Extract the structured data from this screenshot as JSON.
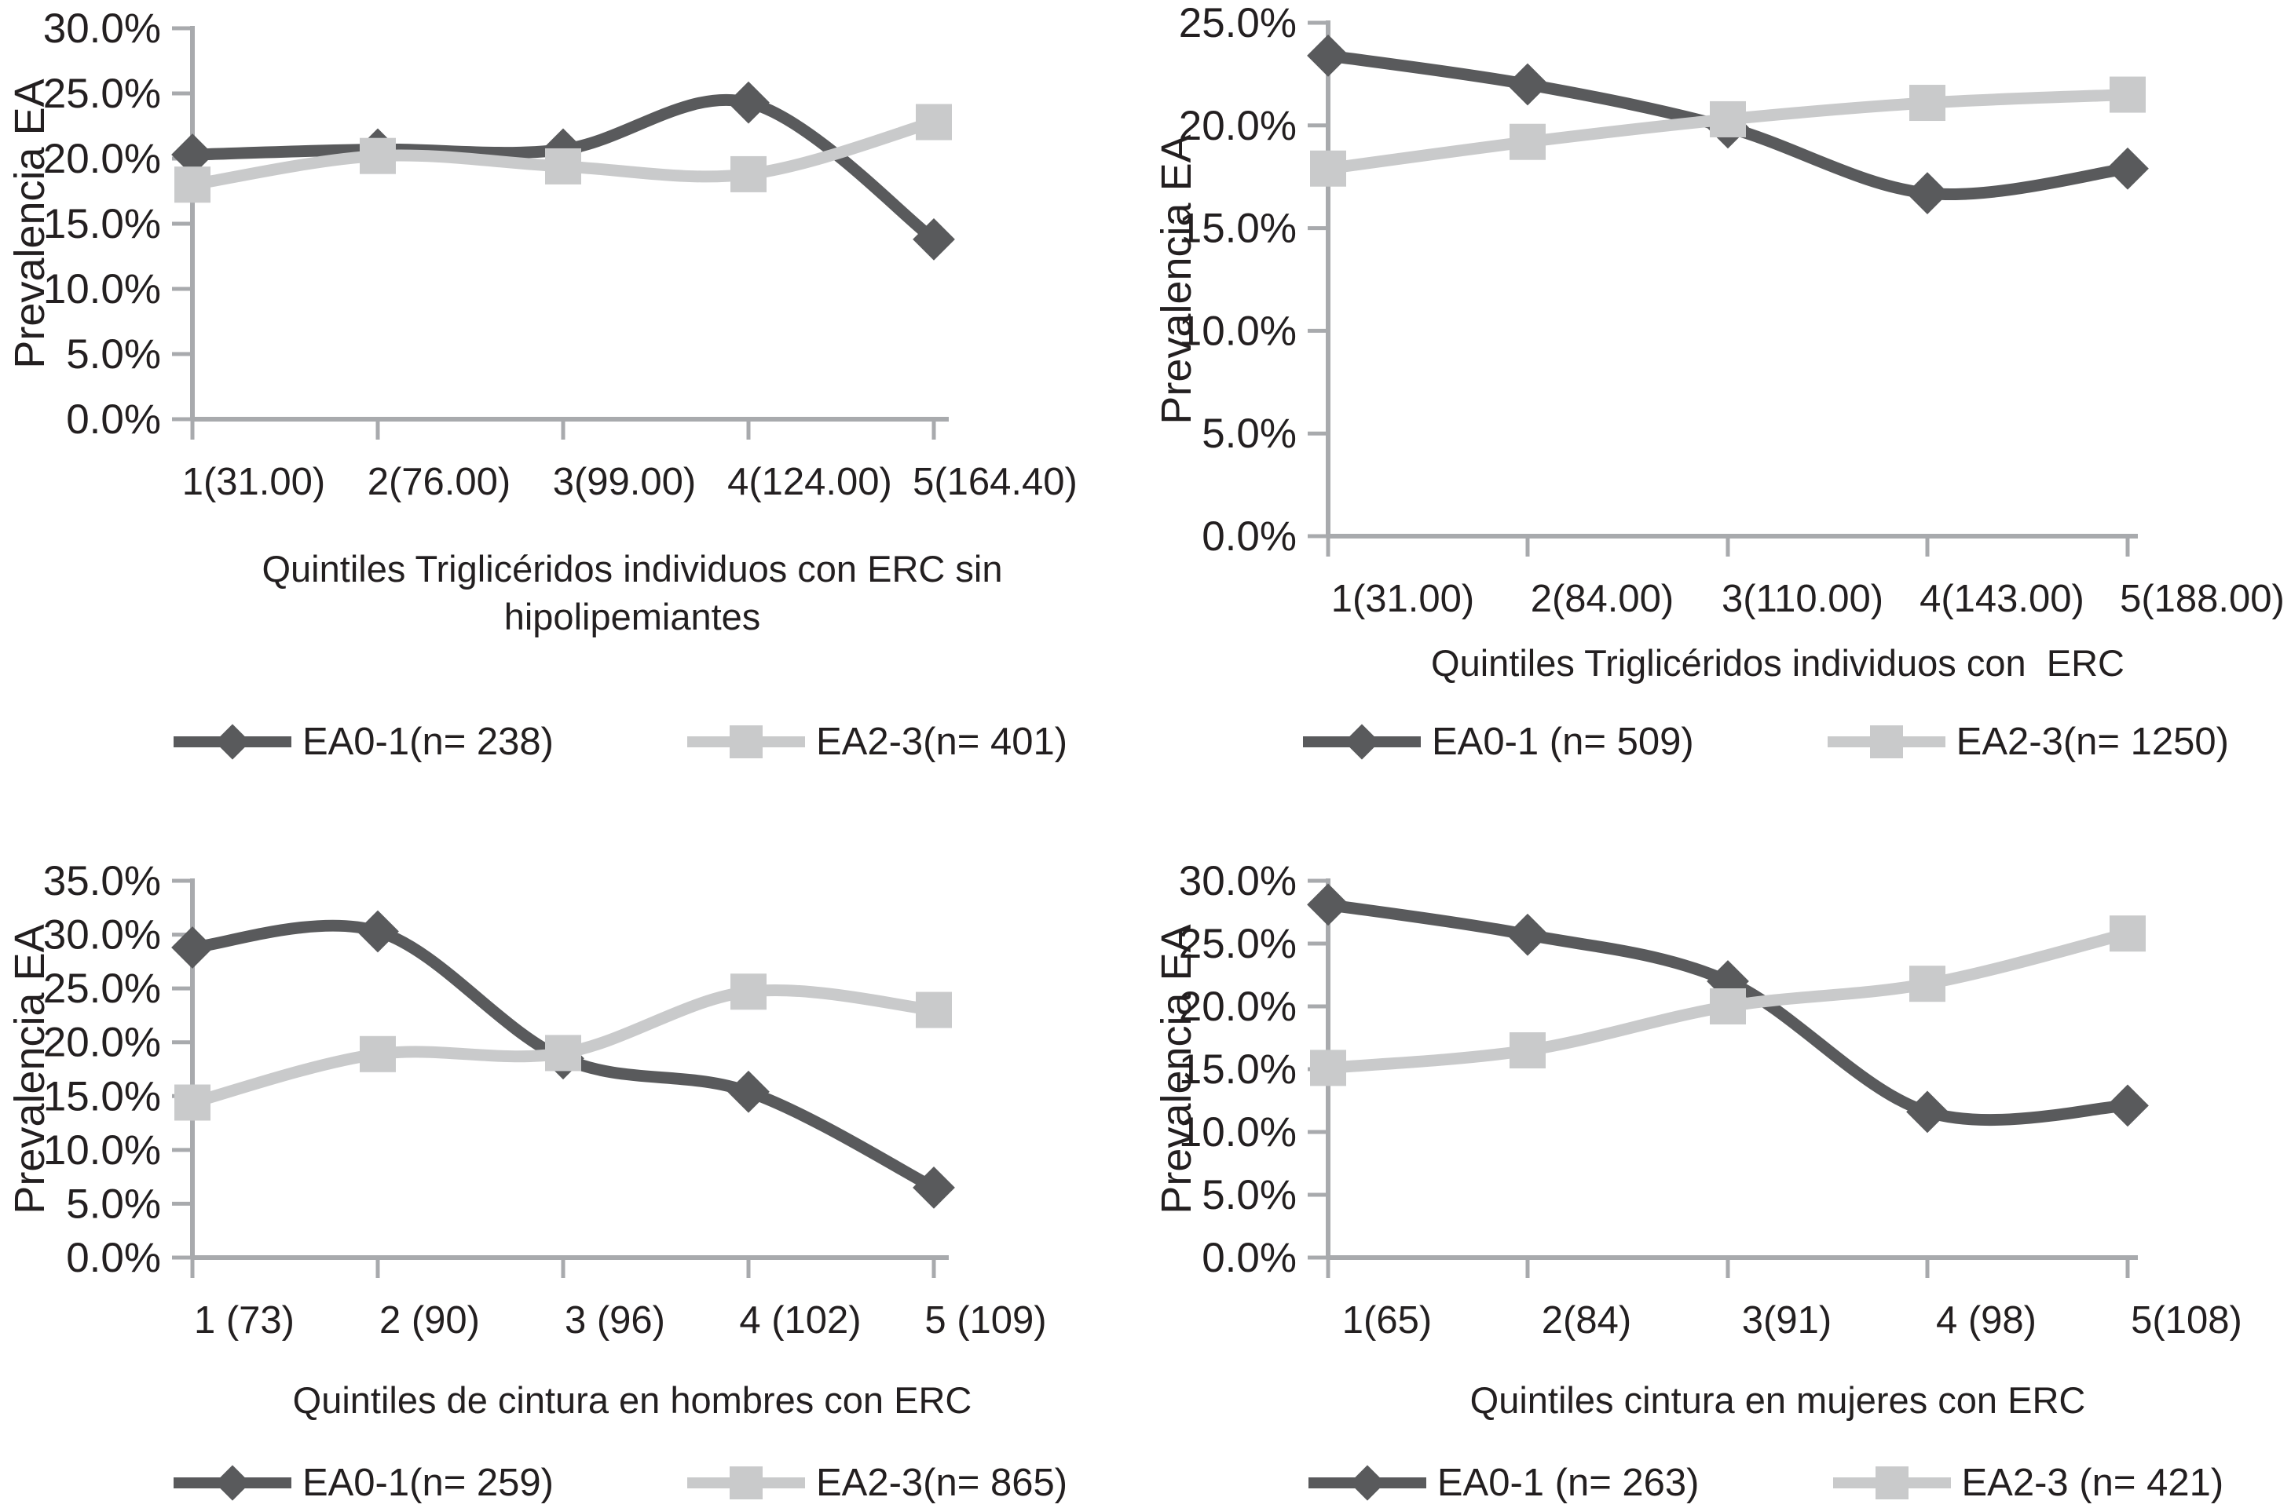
{
  "style": {
    "background": "#ffffff",
    "text_color": "#231f20",
    "axis_color": "#a8aaad",
    "series_colors": {
      "dark": "#595a5c",
      "light": "#c9cacb"
    }
  },
  "chart_data": [
    {
      "type": "line",
      "title": "Quintiles Triglicéridos individuos con ERC sin\nhipolipemiantes",
      "ylabel": "Prevalencia EA",
      "xlabel": "",
      "ylim": [
        0,
        30
      ],
      "ytick_step": 5,
      "ytick_labels": [
        "0.0%",
        "5.0%",
        "10.0%",
        "15.0%",
        "20.0%",
        "25.0%",
        "30.0%"
      ],
      "categories": [
        "1(31.00)",
        "2(76.00)",
        "3(99.00)",
        "4(124.00)",
        "5(164.40)"
      ],
      "grid": false,
      "legend_position": "bottom",
      "series": [
        {
          "name": "EA0-1(n= 238)",
          "marker": "diamond",
          "color": "dark",
          "values": [
            20.3,
            20.7,
            20.7,
            24.3,
            13.8
          ]
        },
        {
          "name": "EA2-3(n= 401)",
          "marker": "square",
          "color": "light",
          "values": [
            18.0,
            20.2,
            19.4,
            18.8,
            22.8
          ]
        }
      ]
    },
    {
      "type": "line",
      "title": "Quintiles Triglicéridos individuos con  ERC",
      "ylabel": "Prevalencia EA",
      "xlabel": "",
      "ylim": [
        0,
        25
      ],
      "ytick_step": 5,
      "ytick_labels": [
        "0.0%",
        "5.0%",
        "10.0%",
        "15.0%",
        "20.0%",
        "25.0%"
      ],
      "categories": [
        "1(31.00)",
        "2(84.00)",
        "3(110.00)",
        "4(143.00)",
        "5(188.00)"
      ],
      "grid": false,
      "legend_position": "bottom",
      "series": [
        {
          "name": "EA0-1 (n= 509)",
          "marker": "diamond",
          "color": "dark",
          "values": [
            23.4,
            22.0,
            19.9,
            16.7,
            17.9
          ]
        },
        {
          "name": "EA2-3(n= 1250)",
          "marker": "square",
          "color": "light",
          "values": [
            17.9,
            19.2,
            20.3,
            21.1,
            21.5
          ]
        }
      ]
    },
    {
      "type": "line",
      "title": "Quintiles de cintura en hombres con ERC",
      "ylabel": "Prevalencia EA",
      "xlabel": "",
      "ylim": [
        0,
        35
      ],
      "ytick_step": 5,
      "ytick_labels": [
        "0.0%",
        "5.0%",
        "10.0%",
        "15.0%",
        "20.0%",
        "25.0%",
        "30.0%",
        "35.0%"
      ],
      "categories": [
        "1 (73)",
        "2 (90)",
        "3 (96)",
        "4 (102)",
        "5 (109)"
      ],
      "grid": false,
      "legend_position": "bottom",
      "series": [
        {
          "name": "EA0-1(n= 259)",
          "marker": "diamond",
          "color": "dark",
          "values": [
            28.8,
            30.3,
            18.5,
            15.4,
            6.5
          ]
        },
        {
          "name": "EA2-3(n= 865)",
          "marker": "square",
          "color": "light",
          "values": [
            14.4,
            18.9,
            19.0,
            24.7,
            23.0
          ]
        }
      ]
    },
    {
      "type": "line",
      "title": "Quintiles cintura en mujeres con ERC",
      "ylabel": "Prevalencia EA",
      "xlabel": "",
      "ylim": [
        0,
        30
      ],
      "ytick_step": 5,
      "ytick_labels": [
        "0.0%",
        "5.0%",
        "10.0%",
        "15.0%",
        "20.0%",
        "25.0%",
        "30.0%"
      ],
      "categories": [
        "1(65)",
        "2(84)",
        "3(91)",
        "4 (98)",
        "5(108)"
      ],
      "grid": false,
      "legend_position": "bottom",
      "series": [
        {
          "name": "EA0-1 (n= 263)",
          "marker": "diamond",
          "color": "dark",
          "values": [
            28.1,
            25.7,
            22.0,
            11.6,
            12.1
          ]
        },
        {
          "name": "EA2-3 (n= 421)",
          "marker": "square",
          "color": "light",
          "values": [
            15.1,
            16.5,
            20.0,
            21.8,
            25.8
          ]
        }
      ]
    }
  ]
}
